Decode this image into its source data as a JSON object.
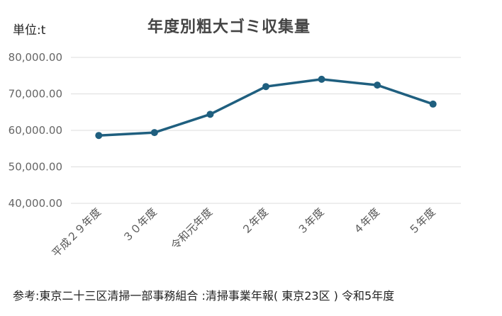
{
  "chart_data": {
    "type": "line",
    "title": "年度別粗大ゴミ収集量",
    "unit_label": "単位:t",
    "source": "参考:東京二十三区清掃一部事務組合 :清掃事業年報( 東京23区 ) 令和5年度",
    "categories": [
      "平成２９年度",
      "３０年度",
      "令和元年度",
      "２年度",
      "３年度",
      "４年度",
      "５年度"
    ],
    "series": [
      {
        "values": [
          58600,
          59400,
          64400,
          72000,
          74000,
          72400,
          67200
        ]
      }
    ],
    "y_ticks": [
      "80,000.00",
      "70,000.00",
      "60,000.00",
      "50,000.00",
      "40,000.00"
    ],
    "ylim": [
      40000,
      80000
    ],
    "grid": true,
    "line_color": "#1f5f7f",
    "grid_color": "#dddddd"
  }
}
